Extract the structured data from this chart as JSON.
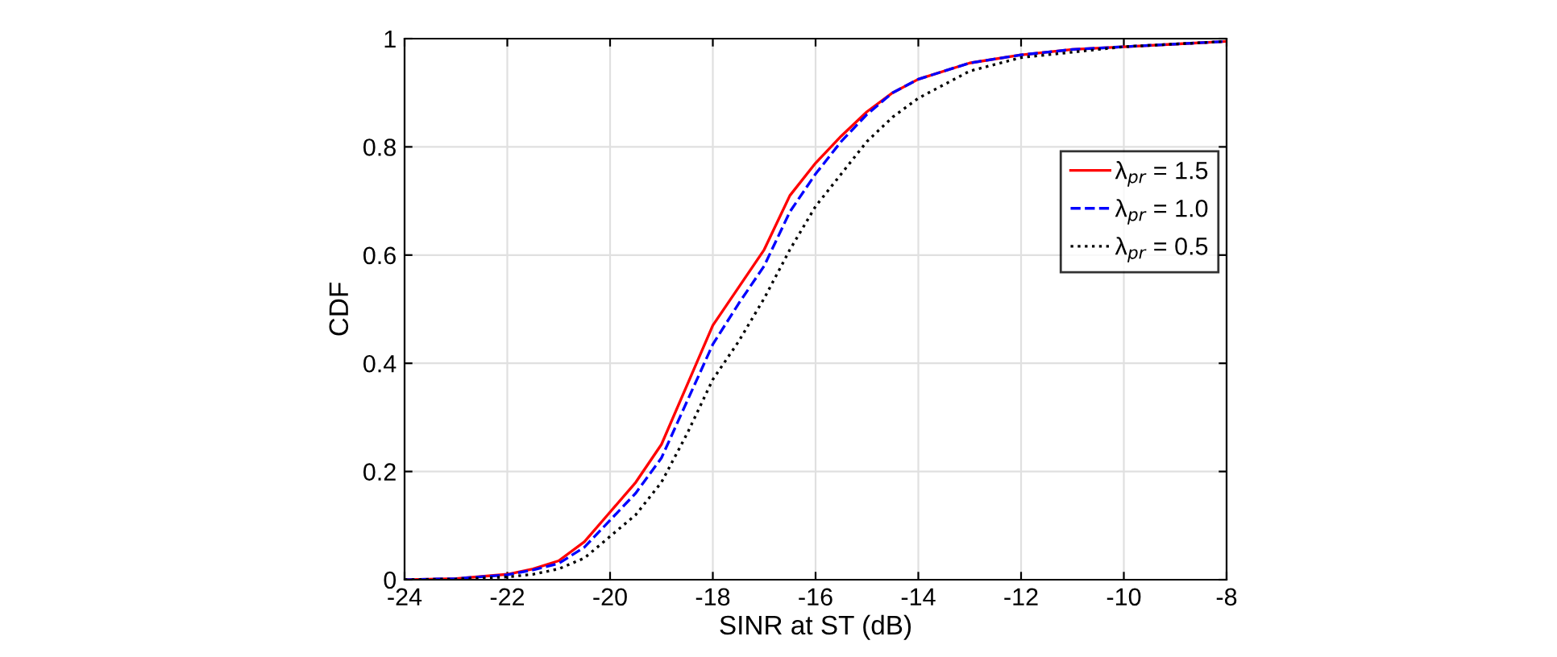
{
  "chart_data": {
    "type": "line",
    "xlabel": "SINR at ST (dB)",
    "ylabel": "CDF",
    "x": [
      -24,
      -23,
      -22,
      -21.5,
      -21,
      -20.5,
      -20,
      -19.5,
      -19,
      -18.5,
      -18,
      -17.5,
      -17,
      -16.5,
      -16,
      -15.5,
      -15,
      -14.5,
      -14,
      -13,
      -12,
      -11,
      -10,
      -9,
      -8
    ],
    "series": [
      {
        "name": "λ$_{pr}$ = 1.5",
        "color": "#ff0000",
        "line_style": "solid",
        "values": [
          0,
          0.002,
          0.01,
          0.02,
          0.035,
          0.07,
          0.125,
          0.18,
          0.25,
          0.36,
          0.47,
          0.54,
          0.61,
          0.71,
          0.77,
          0.82,
          0.865,
          0.9,
          0.925,
          0.955,
          0.97,
          0.98,
          0.985,
          0.99,
          0.995
        ]
      },
      {
        "name": "λ$_{pr}$ = 1.0",
        "color": "#0000ff",
        "line_style": "dashed",
        "values": [
          0,
          0.002,
          0.009,
          0.018,
          0.03,
          0.06,
          0.11,
          0.16,
          0.225,
          0.33,
          0.435,
          0.51,
          0.58,
          0.68,
          0.75,
          0.81,
          0.86,
          0.9,
          0.925,
          0.955,
          0.97,
          0.98,
          0.985,
          0.99,
          0.995
        ]
      },
      {
        "name": "λ$_{pr}$ = 0.5",
        "color": "#000000",
        "line_style": "dotted",
        "values": [
          0,
          0.001,
          0.005,
          0.01,
          0.02,
          0.04,
          0.08,
          0.12,
          0.18,
          0.27,
          0.37,
          0.44,
          0.52,
          0.61,
          0.69,
          0.75,
          0.81,
          0.855,
          0.89,
          0.94,
          0.965,
          0.975,
          0.985,
          0.99,
          0.995
        ]
      }
    ],
    "xlim": [
      -24,
      -8
    ],
    "xticks": [
      -24,
      -22,
      -20,
      -18,
      -16,
      -14,
      -12,
      -10,
      -8
    ],
    "ylim": [
      0,
      1
    ],
    "yticks": [
      0,
      0.2,
      0.4,
      0.6,
      0.8,
      1
    ],
    "grid": true,
    "legend": "right",
    "marker": "none"
  }
}
